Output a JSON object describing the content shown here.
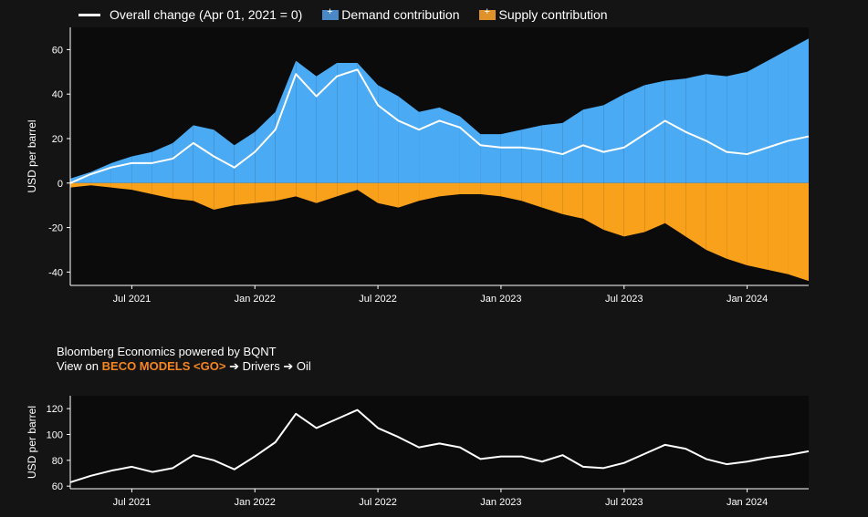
{
  "legend": {
    "overall_label": "Overall change (Apr 01, 2021 = 0)",
    "demand_label": "Demand contribution",
    "supply_label": "Supply contribution"
  },
  "note": {
    "line1": "Bloomberg Economics powered by BQNT",
    "prefix": "View on ",
    "highlight": "BECO MODELS <GO>",
    "suffix": " ➔ Drivers ➔ Oil"
  },
  "colors": {
    "background": "#141414",
    "plot_background": "#0b0b0b",
    "demand": "#4aaaf4",
    "supply": "#f9a11b",
    "line": "#ffffff",
    "highlight": "#f5861f"
  },
  "chart_data": [
    {
      "type": "area",
      "ylabel": "USD per barrel",
      "ylim": [
        -46,
        70
      ],
      "yticks": [
        -40,
        -20,
        0,
        20,
        40,
        60
      ],
      "xticks": [
        "Jul 2021",
        "Jan 2022",
        "Jul 2022",
        "Jan 2023",
        "Jul 2023",
        "Jan 2024"
      ],
      "grid": false,
      "legend_position": "top",
      "x": [
        "2021-04",
        "2021-05",
        "2021-06",
        "2021-07",
        "2021-08",
        "2021-09",
        "2021-10",
        "2021-11",
        "2021-12",
        "2022-01",
        "2022-02",
        "2022-03",
        "2022-04",
        "2022-05",
        "2022-06",
        "2022-07",
        "2022-08",
        "2022-09",
        "2022-10",
        "2022-11",
        "2022-12",
        "2023-01",
        "2023-02",
        "2023-03",
        "2023-04",
        "2023-05",
        "2023-06",
        "2023-07",
        "2023-08",
        "2023-09",
        "2023-10",
        "2023-11",
        "2023-12",
        "2024-01",
        "2024-02",
        "2024-03",
        "2024-04"
      ],
      "series": [
        {
          "name": "Demand contribution",
          "values": [
            2,
            5,
            9,
            12,
            14,
            18,
            26,
            24,
            17,
            23,
            32,
            55,
            48,
            54,
            54,
            44,
            39,
            32,
            34,
            30,
            22,
            22,
            24,
            26,
            27,
            33,
            35,
            40,
            44,
            46,
            47,
            49,
            48,
            50,
            55,
            60,
            65
          ]
        },
        {
          "name": "Supply contribution",
          "values": [
            -2,
            -1,
            -2,
            -3,
            -5,
            -7,
            -8,
            -12,
            -10,
            -9,
            -8,
            -6,
            -9,
            -6,
            -3,
            -9,
            -11,
            -8,
            -6,
            -5,
            -5,
            -6,
            -8,
            -11,
            -14,
            -16,
            -21,
            -24,
            -22,
            -18,
            -24,
            -30,
            -34,
            -37,
            -39,
            -41,
            -44
          ]
        },
        {
          "name": "Overall change (Apr 01, 2021 = 0)",
          "values": [
            0,
            4,
            7,
            9,
            9,
            11,
            18,
            12,
            7,
            14,
            24,
            49,
            39,
            48,
            51,
            35,
            28,
            24,
            28,
            25,
            17,
            16,
            16,
            15,
            13,
            17,
            14,
            16,
            22,
            28,
            23,
            19,
            14,
            13,
            16,
            19,
            21
          ]
        }
      ]
    },
    {
      "type": "line",
      "ylabel": "USD per barrel",
      "ylim": [
        58,
        130
      ],
      "yticks": [
        60,
        80,
        100,
        120
      ],
      "xticks": [
        "Jul 2021",
        "Jan 2022",
        "Jul 2022",
        "Jan 2023",
        "Jul 2023",
        "Jan 2024"
      ],
      "grid": false,
      "x": [
        "2021-04",
        "2021-05",
        "2021-06",
        "2021-07",
        "2021-08",
        "2021-09",
        "2021-10",
        "2021-11",
        "2021-12",
        "2022-01",
        "2022-02",
        "2022-03",
        "2022-04",
        "2022-05",
        "2022-06",
        "2022-07",
        "2022-08",
        "2022-09",
        "2022-10",
        "2022-11",
        "2022-12",
        "2023-01",
        "2023-02",
        "2023-03",
        "2023-04",
        "2023-05",
        "2023-06",
        "2023-07",
        "2023-08",
        "2023-09",
        "2023-10",
        "2023-11",
        "2023-12",
        "2024-01",
        "2024-02",
        "2024-03",
        "2024-04"
      ],
      "series": [
        {
          "name": "",
          "values": [
            63,
            68,
            72,
            75,
            71,
            74,
            84,
            80,
            73,
            83,
            94,
            116,
            105,
            112,
            119,
            105,
            98,
            90,
            93,
            90,
            81,
            83,
            83,
            79,
            84,
            75,
            74,
            78,
            85,
            92,
            89,
            81,
            77,
            79,
            82,
            84,
            87
          ]
        }
      ]
    }
  ]
}
